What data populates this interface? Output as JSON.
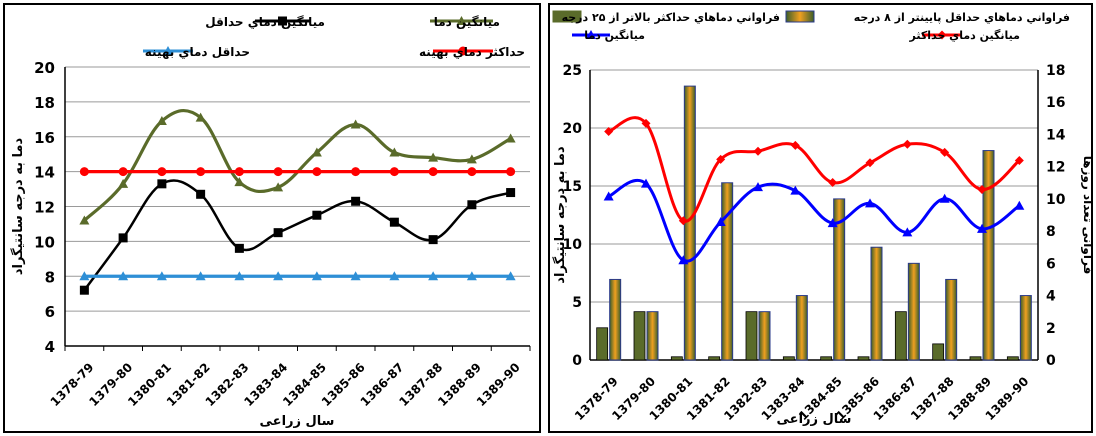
{
  "chart_data": [
    {
      "type": "line",
      "x": [
        "1378-79",
        "1379-80",
        "1380-81",
        "1381-82",
        "1382-83",
        "1383-84",
        "1384-85",
        "1385-86",
        "1386-87",
        "1387-88",
        "1388-89",
        "1389-90"
      ],
      "xlabel": "سال زراعی",
      "ylabel": "دما به درجه سانتیگراد",
      "ylim": [
        4,
        20
      ],
      "yticks": [
        4,
        6,
        8,
        10,
        12,
        14,
        16,
        18,
        20
      ],
      "grid": true,
      "legend": "top",
      "series": [
        {
          "name": "ميانگين دماي حداقل",
          "color": "#000000",
          "marker": "square",
          "values": [
            7.2,
            10.2,
            13.3,
            12.7,
            9.6,
            10.5,
            11.5,
            12.3,
            11.1,
            10.1,
            12.1,
            12.8
          ]
        },
        {
          "name": "ميانگين دما",
          "color": "#5a6b2a",
          "marker": "triangle",
          "values": [
            11.2,
            13.3,
            16.9,
            17.1,
            13.4,
            13.1,
            15.1,
            16.7,
            15.1,
            14.8,
            14.7,
            15.9
          ]
        },
        {
          "name": "حداقل دماي بهينه",
          "color": "#2e8fd6",
          "marker": "triangle",
          "values": [
            8,
            8,
            8,
            8,
            8,
            8,
            8,
            8,
            8,
            8,
            8,
            8
          ]
        },
        {
          "name": "حداكثر دماي بهينه",
          "color": "#ff0000",
          "marker": "circle",
          "values": [
            14,
            14,
            14,
            14,
            14,
            14,
            14,
            14,
            14,
            14,
            14,
            14
          ]
        }
      ]
    },
    {
      "type": "bar",
      "x": [
        "1378-79",
        "1379-80",
        "1380-81",
        "1381-82",
        "1382-83",
        "1383-84",
        "1384-85",
        "1385-86",
        "1386-87",
        "1387-88",
        "1388-89",
        "1389-90"
      ],
      "xlabel": "سال زراعی",
      "ylabel": "دما به درجه سانتیگراد",
      "y2label": "فراوانی تعداد روزها",
      "ylim": [
        0,
        25
      ],
      "y2lim": [
        0,
        18
      ],
      "yticks": [
        0,
        5,
        10,
        15,
        20,
        25
      ],
      "y2ticks": [
        0,
        2,
        4,
        6,
        8,
        10,
        12,
        14,
        16,
        18
      ],
      "grid": true,
      "legend": "top",
      "series": [
        {
          "name": "فراواني دماهاي حداكثر بالاتر از ۲۵ درجه",
          "kind": "bar",
          "axis": "right",
          "color": "#5a6b2a",
          "values": [
            2,
            3,
            0.2,
            0.2,
            3,
            0.2,
            0.2,
            0.2,
            3,
            1,
            0.2,
            0.2
          ]
        },
        {
          "name": "فراواني دماهاي حداقل پايينتر از ۸ درجه",
          "kind": "bar",
          "axis": "right",
          "color": "#f0a020",
          "values": [
            5,
            3,
            17,
            11,
            3,
            4,
            10,
            7,
            6,
            5,
            13,
            4
          ]
        },
        {
          "name": "ميانگين دما",
          "kind": "line",
          "axis": "left",
          "color": "#0000ff",
          "marker": "triangle",
          "values": [
            14.1,
            15.2,
            8.6,
            11.9,
            14.9,
            14.6,
            11.8,
            13.5,
            11.0,
            13.9,
            11.3,
            13.3
          ]
        },
        {
          "name": "ميانگين دماي حداكثر",
          "kind": "line",
          "axis": "left",
          "color": "#ff0000",
          "marker": "diamond",
          "values": [
            19.7,
            20.4,
            12.0,
            17.3,
            18.0,
            18.5,
            15.3,
            17.0,
            18.6,
            17.9,
            14.7,
            17.2
          ]
        }
      ]
    }
  ]
}
